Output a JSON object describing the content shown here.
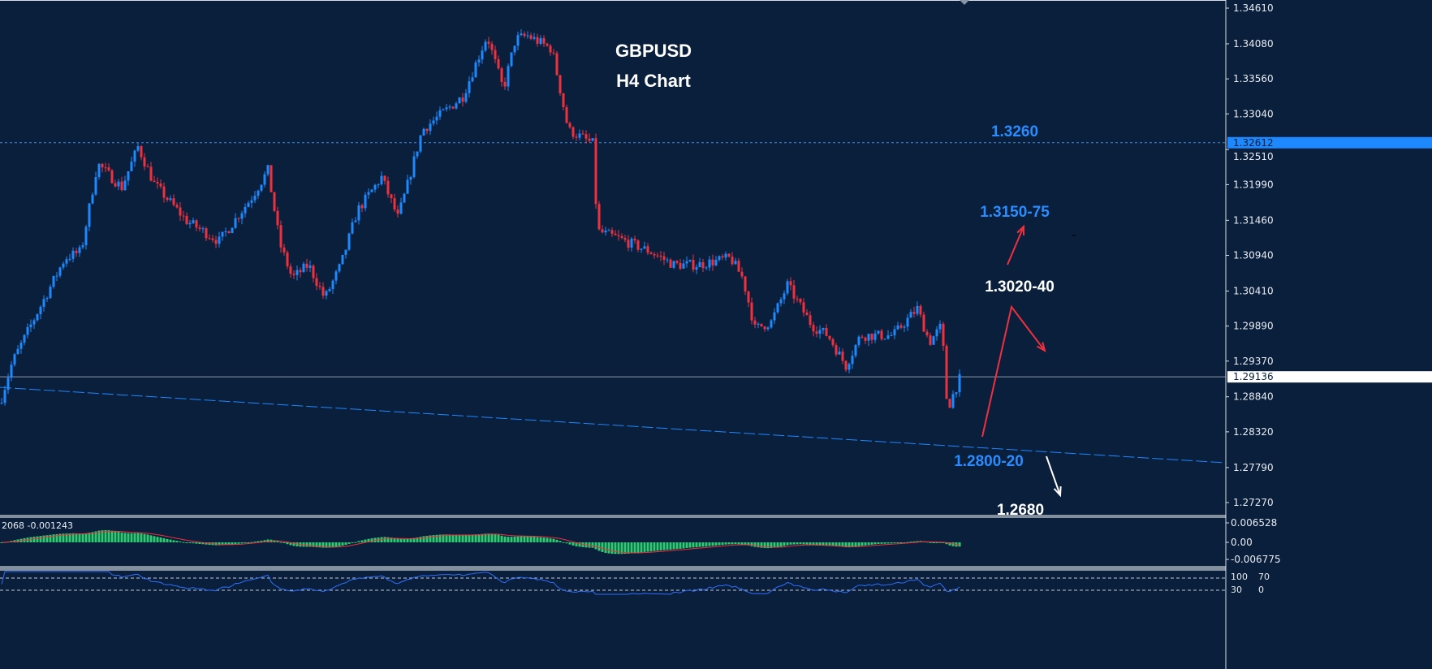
{
  "chart_data": {
    "type": "candlestick",
    "title": "GBPUSD",
    "subtitle": "H4 Chart",
    "colors": {
      "background": "#0a1f3b",
      "bull": "#1e88ff",
      "bear": "#f0303e",
      "macd_hist": "#2ecc71",
      "macd_signal": "#f0303e",
      "rsi": "#2f6fff",
      "trendline": "#1e88ff",
      "annotation_blue": "#2a8cff",
      "annotation_white": "#ffffff",
      "arrow_red": "#f0303e"
    },
    "ylim": [
      1.2713,
      1.3473
    ],
    "y_ticks": [
      "1.34610",
      "1.34080",
      "1.33560",
      "1.33040",
      "1.32510",
      "1.31990",
      "1.31460",
      "1.30940",
      "1.30410",
      "1.29890",
      "1.29370",
      "1.28840",
      "1.28320",
      "1.27790",
      "1.27270"
    ],
    "price_path": [
      [
        0,
        1.2875
      ],
      [
        15,
        1.2935
      ],
      [
        40,
        1.2995
      ],
      [
        80,
        1.309
      ],
      [
        100,
        1.31
      ],
      [
        120,
        1.323
      ],
      [
        150,
        1.3195
      ],
      [
        170,
        1.3255
      ],
      [
        190,
        1.32
      ],
      [
        230,
        1.3145
      ],
      [
        270,
        1.3115
      ],
      [
        310,
        1.318
      ],
      [
        330,
        1.322
      ],
      [
        345,
        1.311
      ],
      [
        360,
        1.306
      ],
      [
        380,
        1.308
      ],
      [
        400,
        1.303
      ],
      [
        420,
        1.308
      ],
      [
        440,
        1.316
      ],
      [
        470,
        1.321
      ],
      [
        490,
        1.315
      ],
      [
        500,
        1.319
      ],
      [
        520,
        1.328
      ],
      [
        540,
        1.33
      ],
      [
        570,
        1.333
      ],
      [
        600,
        1.342
      ],
      [
        620,
        1.334
      ],
      [
        635,
        1.3415
      ],
      [
        650,
        1.342
      ],
      [
        680,
        1.34
      ],
      [
        700,
        1.328
      ],
      [
        730,
        1.326
      ],
      [
        736,
        1.313
      ],
      [
        760,
        1.312
      ],
      [
        800,
        1.31
      ],
      [
        830,
        1.308
      ],
      [
        860,
        1.308
      ],
      [
        900,
        1.309
      ],
      [
        915,
        1.306
      ],
      [
        930,
        1.2985
      ],
      [
        950,
        1.2995
      ],
      [
        970,
        1.305
      ],
      [
        1000,
        1.299
      ],
      [
        1020,
        1.2975
      ],
      [
        1042,
        1.293
      ],
      [
        1060,
        1.2975
      ],
      [
        1100,
        1.2975
      ],
      [
        1130,
        1.3015
      ],
      [
        1145,
        1.2965
      ],
      [
        1160,
        1.299
      ],
      [
        1167,
        1.2865
      ],
      [
        1175,
        1.289
      ],
      [
        1183,
        1.2913
      ]
    ],
    "current_price_label": "1.29136",
    "level_label": "1.32612",
    "horizontal_levels": [
      1.32612,
      1.29136
    ],
    "trendline": {
      "from": [
        0,
        1.2898
      ],
      "to": [
        1510,
        1.2786
      ]
    },
    "macd": {
      "label": "2068 -0.001243",
      "ticks": [
        "0.006528",
        "0.00",
        "-0.006775"
      ]
    },
    "rsi": {
      "ticks": [
        "100",
        "70",
        "30",
        "0"
      ]
    },
    "annotations": [
      {
        "text": "1.3260",
        "color": "blue"
      },
      {
        "text": "1.3150-75",
        "color": "blue"
      },
      {
        "text": "1.3020-40",
        "color": "white"
      },
      {
        "text": "1.2800-20",
        "color": "blue"
      },
      {
        "text": "1.2680",
        "color": "white"
      }
    ]
  }
}
